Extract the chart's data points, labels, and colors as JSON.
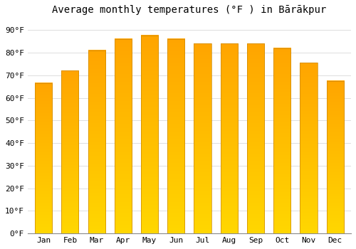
{
  "title": "Average monthly temperatures (°F ) in Bārākpur",
  "months": [
    "Jan",
    "Feb",
    "Mar",
    "Apr",
    "May",
    "Jun",
    "Jul",
    "Aug",
    "Sep",
    "Oct",
    "Nov",
    "Dec"
  ],
  "values": [
    66.5,
    72,
    81,
    86,
    87.5,
    86,
    84,
    84,
    84,
    82,
    75.5,
    67.5
  ],
  "color_top": "#FFA500",
  "color_bottom": "#FFD700",
  "ylim": [
    0,
    95
  ],
  "yticks": [
    0,
    10,
    20,
    30,
    40,
    50,
    60,
    70,
    80,
    90
  ],
  "ytick_labels": [
    "0°F",
    "10°F",
    "20°F",
    "30°F",
    "40°F",
    "50°F",
    "60°F",
    "70°F",
    "80°F",
    "90°F"
  ],
  "background_color": "#FFFFFF",
  "plot_bg_color": "#FFFFFF",
  "grid_color": "#DDDDDD",
  "bar_edge_color": "#CC8800",
  "bar_edge_width": 0.5,
  "title_fontsize": 10,
  "tick_fontsize": 8,
  "bar_width": 0.65,
  "n_grad": 100
}
